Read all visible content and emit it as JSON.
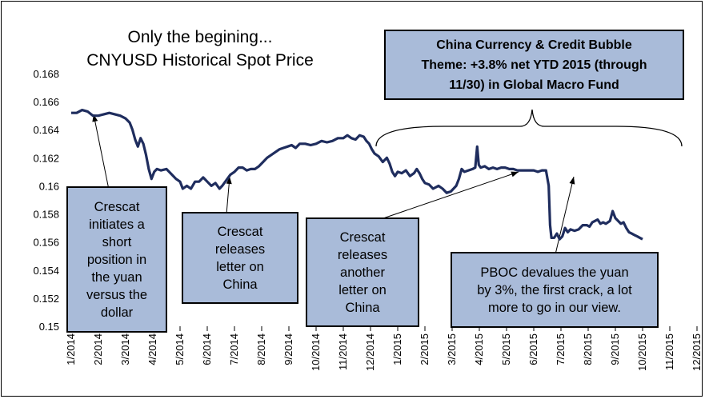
{
  "chart_data": {
    "type": "line",
    "title": "Only the begining...",
    "subtitle": "CNYUSD Historical Spot Price",
    "series": [
      {
        "name": "",
        "color": "#1f2d5e",
        "points": [
          [
            0,
            0.1652
          ],
          [
            0.2,
            0.1652
          ],
          [
            0.4,
            0.1654
          ],
          [
            0.6,
            0.1653
          ],
          [
            0.8,
            0.165
          ],
          [
            1.0,
            0.165
          ],
          [
            1.2,
            0.1651
          ],
          [
            1.4,
            0.1652
          ],
          [
            1.6,
            0.1651
          ],
          [
            1.8,
            0.165
          ],
          [
            2.0,
            0.1648
          ],
          [
            2.15,
            0.1645
          ],
          [
            2.25,
            0.164
          ],
          [
            2.35,
            0.1633
          ],
          [
            2.45,
            0.1628
          ],
          [
            2.55,
            0.1634
          ],
          [
            2.65,
            0.163
          ],
          [
            2.75,
            0.1622
          ],
          [
            2.85,
            0.1612
          ],
          [
            2.95,
            0.1605
          ],
          [
            3.05,
            0.161
          ],
          [
            3.15,
            0.1612
          ],
          [
            3.3,
            0.1611
          ],
          [
            3.5,
            0.1612
          ],
          [
            3.7,
            0.1608
          ],
          [
            3.85,
            0.1605
          ],
          [
            4.0,
            0.1603
          ],
          [
            4.1,
            0.1598
          ],
          [
            4.25,
            0.16
          ],
          [
            4.4,
            0.1598
          ],
          [
            4.55,
            0.1603
          ],
          [
            4.7,
            0.1603
          ],
          [
            4.85,
            0.1606
          ],
          [
            5.0,
            0.1603
          ],
          [
            5.15,
            0.16
          ],
          [
            5.3,
            0.1602
          ],
          [
            5.45,
            0.1598
          ],
          [
            5.55,
            0.16
          ],
          [
            5.7,
            0.1604
          ],
          [
            5.85,
            0.1608
          ],
          [
            6.0,
            0.161
          ],
          [
            6.15,
            0.1613
          ],
          [
            6.3,
            0.1613
          ],
          [
            6.45,
            0.1611
          ],
          [
            6.6,
            0.1612
          ],
          [
            6.75,
            0.1612
          ],
          [
            6.9,
            0.1614
          ],
          [
            7.05,
            0.1617
          ],
          [
            7.2,
            0.162
          ],
          [
            7.35,
            0.1622
          ],
          [
            7.5,
            0.1624
          ],
          [
            7.65,
            0.1626
          ],
          [
            7.8,
            0.1627
          ],
          [
            7.95,
            0.1628
          ],
          [
            8.1,
            0.1629
          ],
          [
            8.25,
            0.1627
          ],
          [
            8.4,
            0.163
          ],
          [
            8.6,
            0.163
          ],
          [
            8.8,
            0.1629
          ],
          [
            9.0,
            0.163
          ],
          [
            9.2,
            0.1632
          ],
          [
            9.4,
            0.1631
          ],
          [
            9.6,
            0.1632
          ],
          [
            9.8,
            0.1634
          ],
          [
            10.0,
            0.1634
          ],
          [
            10.15,
            0.1636
          ],
          [
            10.3,
            0.1634
          ],
          [
            10.45,
            0.1633
          ],
          [
            10.6,
            0.1636
          ],
          [
            10.75,
            0.1635
          ],
          [
            10.85,
            0.1632
          ],
          [
            10.95,
            0.163
          ],
          [
            11.05,
            0.1626
          ],
          [
            11.15,
            0.1623
          ],
          [
            11.3,
            0.1621
          ],
          [
            11.45,
            0.1617
          ],
          [
            11.6,
            0.162
          ],
          [
            11.7,
            0.1616
          ],
          [
            11.8,
            0.161
          ],
          [
            11.9,
            0.1607
          ],
          [
            12.0,
            0.161
          ],
          [
            12.15,
            0.1609
          ],
          [
            12.3,
            0.1611
          ],
          [
            12.45,
            0.1607
          ],
          [
            12.6,
            0.1609
          ],
          [
            12.7,
            0.1612
          ],
          [
            12.8,
            0.1609
          ],
          [
            12.9,
            0.1605
          ],
          [
            13.0,
            0.1602
          ],
          [
            13.15,
            0.1601
          ],
          [
            13.3,
            0.1598
          ],
          [
            13.5,
            0.16
          ],
          [
            13.65,
            0.1598
          ],
          [
            13.8,
            0.1595
          ],
          [
            13.95,
            0.1596
          ],
          [
            14.05,
            0.1598
          ],
          [
            14.15,
            0.16
          ],
          [
            14.25,
            0.1605
          ],
          [
            14.35,
            0.1612
          ],
          [
            14.45,
            0.161
          ],
          [
            14.6,
            0.1611
          ],
          [
            14.75,
            0.1612
          ],
          [
            14.85,
            0.1613
          ],
          [
            14.92,
            0.1628
          ],
          [
            14.98,
            0.1615
          ],
          [
            15.05,
            0.1613
          ],
          [
            15.2,
            0.1614
          ],
          [
            15.35,
            0.1612
          ],
          [
            15.5,
            0.1613
          ],
          [
            15.65,
            0.1612
          ],
          [
            15.8,
            0.1613
          ],
          [
            15.95,
            0.1613
          ],
          [
            16.1,
            0.1612
          ],
          [
            16.25,
            0.1612
          ],
          [
            16.4,
            0.1611
          ],
          [
            16.6,
            0.1611
          ],
          [
            16.8,
            0.1611
          ],
          [
            17.0,
            0.1611
          ],
          [
            17.15,
            0.161
          ],
          [
            17.3,
            0.1611
          ],
          [
            17.45,
            0.1611
          ],
          [
            17.55,
            0.16
          ],
          [
            17.6,
            0.1572
          ],
          [
            17.65,
            0.1563
          ],
          [
            17.75,
            0.1563
          ],
          [
            17.85,
            0.1566
          ],
          [
            17.95,
            0.1562
          ],
          [
            18.05,
            0.1564
          ],
          [
            18.15,
            0.157
          ],
          [
            18.25,
            0.1567
          ],
          [
            18.35,
            0.1569
          ],
          [
            18.5,
            0.1568
          ],
          [
            18.65,
            0.1569
          ],
          [
            18.8,
            0.1572
          ],
          [
            18.95,
            0.1572
          ],
          [
            19.05,
            0.1571
          ],
          [
            19.15,
            0.1574
          ],
          [
            19.25,
            0.1575
          ],
          [
            19.35,
            0.1576
          ],
          [
            19.45,
            0.1573
          ],
          [
            19.55,
            0.1574
          ],
          [
            19.65,
            0.1573
          ],
          [
            19.8,
            0.1575
          ],
          [
            19.9,
            0.1582
          ],
          [
            20.0,
            0.1577
          ],
          [
            20.1,
            0.1575
          ],
          [
            20.2,
            0.1573
          ],
          [
            20.3,
            0.1574
          ],
          [
            20.4,
            0.157
          ],
          [
            20.5,
            0.1567
          ],
          [
            20.6,
            0.1566
          ],
          [
            20.7,
            0.1565
          ],
          [
            20.8,
            0.1564
          ],
          [
            20.9,
            0.1563
          ],
          [
            21.0,
            0.1562
          ]
        ]
      }
    ],
    "x_tick_labels": [
      "1/2014",
      "2/2014",
      "3/2014",
      "4/2014",
      "5/2014",
      "6/2014",
      "7/2014",
      "8/2014",
      "9/2014",
      "10/2014",
      "11/2014",
      "12/2014",
      "1/2015",
      "2/2015",
      "3/2015",
      "4/2015",
      "5/2015",
      "6/2015",
      "7/2015",
      "8/2015",
      "9/2015",
      "10/2015",
      "11/2015",
      "12/2015"
    ],
    "x_unit_note": "months since 1/2014",
    "y_ticks": [
      "0.168",
      "0.166",
      "0.164",
      "0.162",
      "0.16",
      "0.158",
      "0.156",
      "0.154",
      "0.152",
      "0.15"
    ],
    "ylim": [
      0.15,
      0.168
    ],
    "grid": false,
    "legend": "none"
  },
  "callouts": {
    "short": [
      "Crescat",
      "initiates a",
      "short",
      "position in",
      "the yuan",
      "versus the",
      "dollar"
    ],
    "letter1": [
      "Crescat",
      "releases",
      "letter on",
      "China"
    ],
    "letter2": [
      "Crescat",
      "releases",
      "another",
      "letter on",
      "China"
    ],
    "pboc": [
      "PBOC devalues the yuan",
      "by 3%, the first crack, a lot",
      "more to go in our view."
    ],
    "theme": [
      "China Currency & Credit Bubble",
      "Theme: +3.8% net YTD 2015 (through",
      "11/30) in Global Macro Fund"
    ]
  },
  "colors": {
    "line": "#1f2d5e",
    "callout_fill": "#a9bbd9",
    "callout_border": "#000000"
  }
}
